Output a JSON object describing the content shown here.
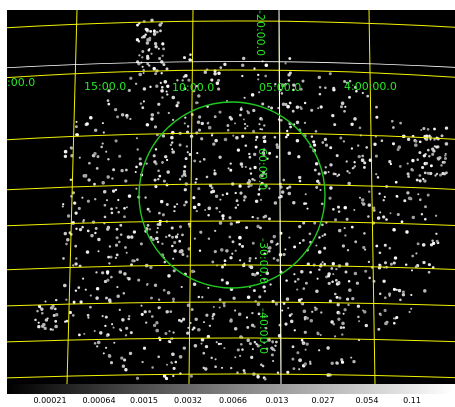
{
  "coordinate_grid": {
    "ra_labels": [
      "15:00.0",
      "10:00.0",
      "05:00.0",
      "4:00:00.0",
      ":00.0"
    ],
    "dec_labels": [
      "-20:00.0",
      "-30:00.0",
      "-40:00.0",
      "60:00.0"
    ],
    "grid_color": "#f2f200",
    "label_color": "#27e627"
  },
  "region": {
    "shape": "circle",
    "color": "#1fc81f"
  },
  "colorbar": {
    "scale": "log",
    "colormap": "grey",
    "tick_labels": [
      "0.00021",
      "0.00064",
      "0.0015",
      "0.0032",
      "0.0066",
      "0.013",
      "0.027",
      "0.054",
      "0.11"
    ]
  }
}
